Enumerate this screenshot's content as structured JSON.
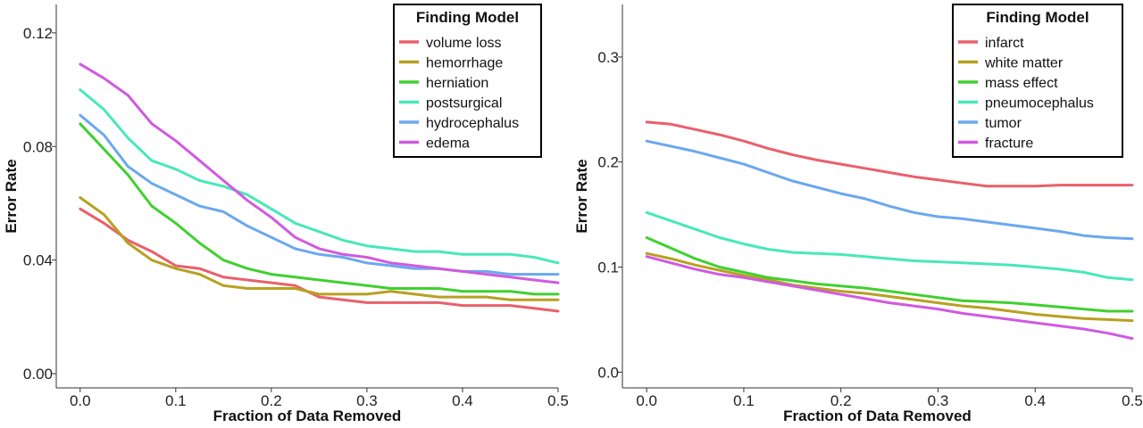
{
  "chart_data": [
    {
      "type": "line",
      "xlabel": "Fraction of Data Removed",
      "ylabel": "Error Rate",
      "xlim": [
        -0.025,
        0.5
      ],
      "ylim": [
        -0.005,
        0.13
      ],
      "x_ticks": [
        0.0,
        0.1,
        0.2,
        0.3,
        0.4,
        0.5
      ],
      "x_tick_labels": [
        "0.0",
        "0.1",
        "0.2",
        "0.3",
        "0.4",
        "0.5"
      ],
      "y_ticks": [
        0.0,
        0.04,
        0.08,
        0.12
      ],
      "y_tick_labels": [
        "0.00",
        "0.04",
        "0.08",
        "0.12"
      ],
      "grid": false,
      "legend": {
        "title": "Finding Model",
        "position": "top-right"
      },
      "x": [
        0.0,
        0.025,
        0.05,
        0.075,
        0.1,
        0.125,
        0.15,
        0.175,
        0.2,
        0.225,
        0.25,
        0.275,
        0.3,
        0.325,
        0.35,
        0.375,
        0.4,
        0.425,
        0.45,
        0.475,
        0.5
      ],
      "series": [
        {
          "name": "volume loss",
          "color": "#E8606B",
          "values": [
            0.058,
            0.053,
            0.047,
            0.043,
            0.038,
            0.037,
            0.034,
            0.033,
            0.032,
            0.031,
            0.027,
            0.026,
            0.025,
            0.025,
            0.025,
            0.025,
            0.024,
            0.024,
            0.024,
            0.023,
            0.022
          ]
        },
        {
          "name": "hemorrhage",
          "color": "#B8A020",
          "values": [
            0.062,
            0.056,
            0.046,
            0.04,
            0.037,
            0.035,
            0.031,
            0.03,
            0.03,
            0.03,
            0.028,
            0.028,
            0.028,
            0.029,
            0.028,
            0.027,
            0.027,
            0.027,
            0.026,
            0.026,
            0.026
          ]
        },
        {
          "name": "herniation",
          "color": "#40D030",
          "values": [
            0.088,
            0.079,
            0.07,
            0.059,
            0.053,
            0.046,
            0.04,
            0.037,
            0.035,
            0.034,
            0.033,
            0.032,
            0.031,
            0.03,
            0.03,
            0.03,
            0.029,
            0.029,
            0.029,
            0.028,
            0.028
          ]
        },
        {
          "name": "postsurgical",
          "color": "#48E8B8",
          "values": [
            0.1,
            0.093,
            0.083,
            0.075,
            0.072,
            0.068,
            0.066,
            0.063,
            0.058,
            0.053,
            0.05,
            0.047,
            0.045,
            0.044,
            0.043,
            0.043,
            0.042,
            0.042,
            0.042,
            0.041,
            0.039
          ]
        },
        {
          "name": "hydrocephalus",
          "color": "#6BA8EE",
          "values": [
            0.091,
            0.084,
            0.073,
            0.067,
            0.063,
            0.059,
            0.057,
            0.052,
            0.048,
            0.044,
            0.042,
            0.041,
            0.039,
            0.038,
            0.037,
            0.037,
            0.036,
            0.036,
            0.035,
            0.035,
            0.035
          ]
        },
        {
          "name": "edema",
          "color": "#D05AE0",
          "values": [
            0.109,
            0.104,
            0.098,
            0.088,
            0.082,
            0.075,
            0.068,
            0.061,
            0.055,
            0.048,
            0.044,
            0.042,
            0.041,
            0.039,
            0.038,
            0.037,
            0.036,
            0.035,
            0.034,
            0.033,
            0.032
          ]
        }
      ]
    },
    {
      "type": "line",
      "xlabel": "Fraction of Data Removed",
      "ylabel": "Error Rate",
      "xlim": [
        -0.025,
        0.5
      ],
      "ylim": [
        -0.015,
        0.35
      ],
      "x_ticks": [
        0.0,
        0.1,
        0.2,
        0.3,
        0.4,
        0.5
      ],
      "x_tick_labels": [
        "0.0",
        "0.1",
        "0.2",
        "0.3",
        "0.4",
        "0.5"
      ],
      "y_ticks": [
        0.0,
        0.1,
        0.2,
        0.3
      ],
      "y_tick_labels": [
        "0.0",
        "0.1",
        "0.2",
        "0.3"
      ],
      "grid": false,
      "legend": {
        "title": "Finding Model",
        "position": "top-right"
      },
      "x": [
        0.0,
        0.025,
        0.05,
        0.075,
        0.1,
        0.125,
        0.15,
        0.175,
        0.2,
        0.225,
        0.25,
        0.275,
        0.3,
        0.325,
        0.35,
        0.375,
        0.4,
        0.425,
        0.45,
        0.475,
        0.5
      ],
      "series": [
        {
          "name": "infarct",
          "color": "#E8606B",
          "values": [
            0.238,
            0.236,
            0.231,
            0.226,
            0.22,
            0.213,
            0.207,
            0.202,
            0.198,
            0.194,
            0.19,
            0.186,
            0.183,
            0.18,
            0.177,
            0.177,
            0.177,
            0.178,
            0.178,
            0.178,
            0.178
          ]
        },
        {
          "name": "white matter",
          "color": "#B8A020",
          "values": [
            0.113,
            0.108,
            0.102,
            0.097,
            0.092,
            0.088,
            0.083,
            0.08,
            0.077,
            0.075,
            0.072,
            0.069,
            0.066,
            0.063,
            0.061,
            0.058,
            0.055,
            0.053,
            0.051,
            0.05,
            0.049
          ]
        },
        {
          "name": "mass effect",
          "color": "#40D030",
          "values": [
            0.128,
            0.118,
            0.108,
            0.1,
            0.095,
            0.09,
            0.087,
            0.084,
            0.082,
            0.08,
            0.077,
            0.074,
            0.071,
            0.068,
            0.067,
            0.066,
            0.064,
            0.062,
            0.06,
            0.058,
            0.058
          ]
        },
        {
          "name": "pneumocephalus",
          "color": "#48E8B8",
          "values": [
            0.152,
            0.144,
            0.136,
            0.128,
            0.122,
            0.117,
            0.114,
            0.113,
            0.112,
            0.11,
            0.108,
            0.106,
            0.105,
            0.104,
            0.103,
            0.102,
            0.1,
            0.098,
            0.095,
            0.09,
            0.088
          ]
        },
        {
          "name": "tumor",
          "color": "#6BA8EE",
          "values": [
            0.22,
            0.215,
            0.21,
            0.204,
            0.198,
            0.19,
            0.182,
            0.176,
            0.17,
            0.165,
            0.158,
            0.152,
            0.148,
            0.146,
            0.143,
            0.14,
            0.137,
            0.134,
            0.13,
            0.128,
            0.127
          ]
        },
        {
          "name": "fracture",
          "color": "#D05AE0",
          "values": [
            0.11,
            0.104,
            0.098,
            0.093,
            0.09,
            0.086,
            0.082,
            0.078,
            0.074,
            0.07,
            0.066,
            0.063,
            0.06,
            0.056,
            0.053,
            0.05,
            0.047,
            0.044,
            0.041,
            0.037,
            0.032
          ]
        }
      ]
    }
  ]
}
